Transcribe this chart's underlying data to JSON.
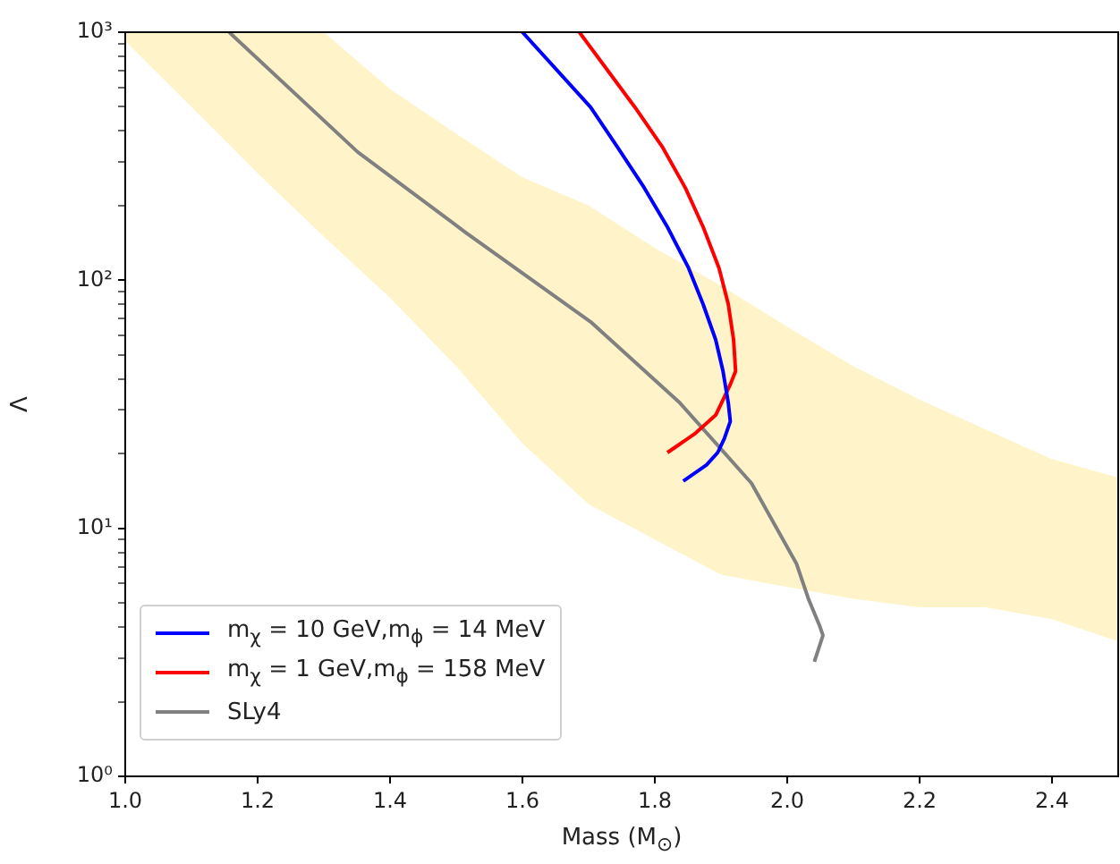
{
  "chart_data": {
    "type": "line",
    "xlabel": "Mass (M$_{⊙}$)",
    "ylabel": "Λ",
    "log": "y",
    "grid": false,
    "legend": "bottom left",
    "line_style": "solid",
    "marker": "none",
    "xlim": [
      1.0,
      2.5
    ],
    "ylim": [
      1,
      1000
    ],
    "xticks": [
      {
        "value": 1.0,
        "label": "1.0"
      },
      {
        "value": 1.2,
        "label": "1.2"
      },
      {
        "value": 1.4,
        "label": "1.4"
      },
      {
        "value": 1.6,
        "label": "1.6"
      },
      {
        "value": 1.8,
        "label": "1.8"
      },
      {
        "value": 2.0,
        "label": "2.0"
      },
      {
        "value": 2.2,
        "label": "2.2"
      },
      {
        "value": 2.4,
        "label": "2.4"
      }
    ],
    "yticks": [
      {
        "value": 1,
        "label": "10⁰"
      },
      {
        "value": 2,
        "label": null
      },
      {
        "value": 3,
        "label": null
      },
      {
        "value": 4,
        "label": null
      },
      {
        "value": 5,
        "label": null
      },
      {
        "value": 6,
        "label": null
      },
      {
        "value": 7,
        "label": null
      },
      {
        "value": 8,
        "label": null
      },
      {
        "value": 9,
        "label": null
      },
      {
        "value": 10,
        "label": "10¹"
      },
      {
        "value": 20,
        "label": null
      },
      {
        "value": 30,
        "label": null
      },
      {
        "value": 40,
        "label": null
      },
      {
        "value": 50,
        "label": null
      },
      {
        "value": 60,
        "label": null
      },
      {
        "value": 70,
        "label": null
      },
      {
        "value": 80,
        "label": null
      },
      {
        "value": 90,
        "label": null
      },
      {
        "value": 100,
        "label": "10²"
      },
      {
        "value": 200,
        "label": null
      },
      {
        "value": 300,
        "label": null
      },
      {
        "value": 400,
        "label": null
      },
      {
        "value": 500,
        "label": null
      },
      {
        "value": 600,
        "label": null
      },
      {
        "value": 700,
        "label": null
      },
      {
        "value": 800,
        "label": null
      },
      {
        "value": 900,
        "label": null
      },
      {
        "value": 1000,
        "label": "10³"
      }
    ],
    "series": [
      {
        "type": "area",
        "color": "#fff4c9",
        "x": [
          1.0,
          1.1,
          1.2,
          1.3,
          1.4,
          1.5,
          1.6,
          1.7,
          1.8,
          1.9,
          2.0,
          2.1,
          2.2,
          2.3,
          2.4,
          2.5
        ],
        "values": [
          null,
          null,
          null,
          null,
          null,
          null,
          null,
          null,
          null,
          null,
          null,
          null,
          null,
          null,
          null,
          null
        ],
        "lower": [
          920,
          500,
          270,
          150,
          85,
          45,
          22,
          12.5,
          9,
          6.5,
          5.8,
          5.2,
          4.8,
          4.8,
          4.3,
          3.5
        ],
        "upper": [
          1000,
          1000,
          1000,
          1000,
          590,
          390,
          260,
          200,
          135,
          95,
          65,
          45,
          33,
          25,
          19,
          16
        ]
      },
      {
        "type": "line",
        "name": "m$_{χ}$ = 10 GeV,m$_{ϕ}$ = 14 MeV",
        "color": "#0000ff",
        "x": [
          1.6,
          1.703,
          1.743,
          1.784,
          1.819,
          1.851,
          1.873,
          1.892,
          1.903,
          1.911,
          1.914,
          1.905,
          1.895,
          1.878,
          1.843
        ],
        "values": [
          1000,
          498,
          346,
          236,
          164,
          112,
          80,
          57.5,
          43,
          32,
          27,
          23,
          20.2,
          18,
          15.5
        ]
      },
      {
        "type": "line",
        "name": "m$_{χ}$ = 1 GeV,m$_{ϕ}$ = 158 MeV",
        "color": "#ff0000",
        "x": [
          1.686,
          1.77,
          1.811,
          1.846,
          1.873,
          1.897,
          1.911,
          1.919,
          1.922,
          1.914,
          1.892,
          1.86,
          1.819
        ],
        "values": [
          1000,
          498,
          346,
          236,
          164,
          112,
          80,
          57.5,
          43,
          38,
          28.6,
          24,
          20.2
        ]
      },
      {
        "type": "line",
        "name": "SLy4",
        "color": "#808080",
        "x": [
          1.157,
          1.351,
          1.514,
          1.703,
          1.838,
          1.946,
          2.014,
          2.032,
          2.049,
          2.054,
          2.041
        ],
        "values": [
          1000,
          329,
          156,
          68,
          32,
          15.2,
          7.2,
          5.2,
          4.04,
          3.7,
          2.9
        ]
      }
    ]
  }
}
